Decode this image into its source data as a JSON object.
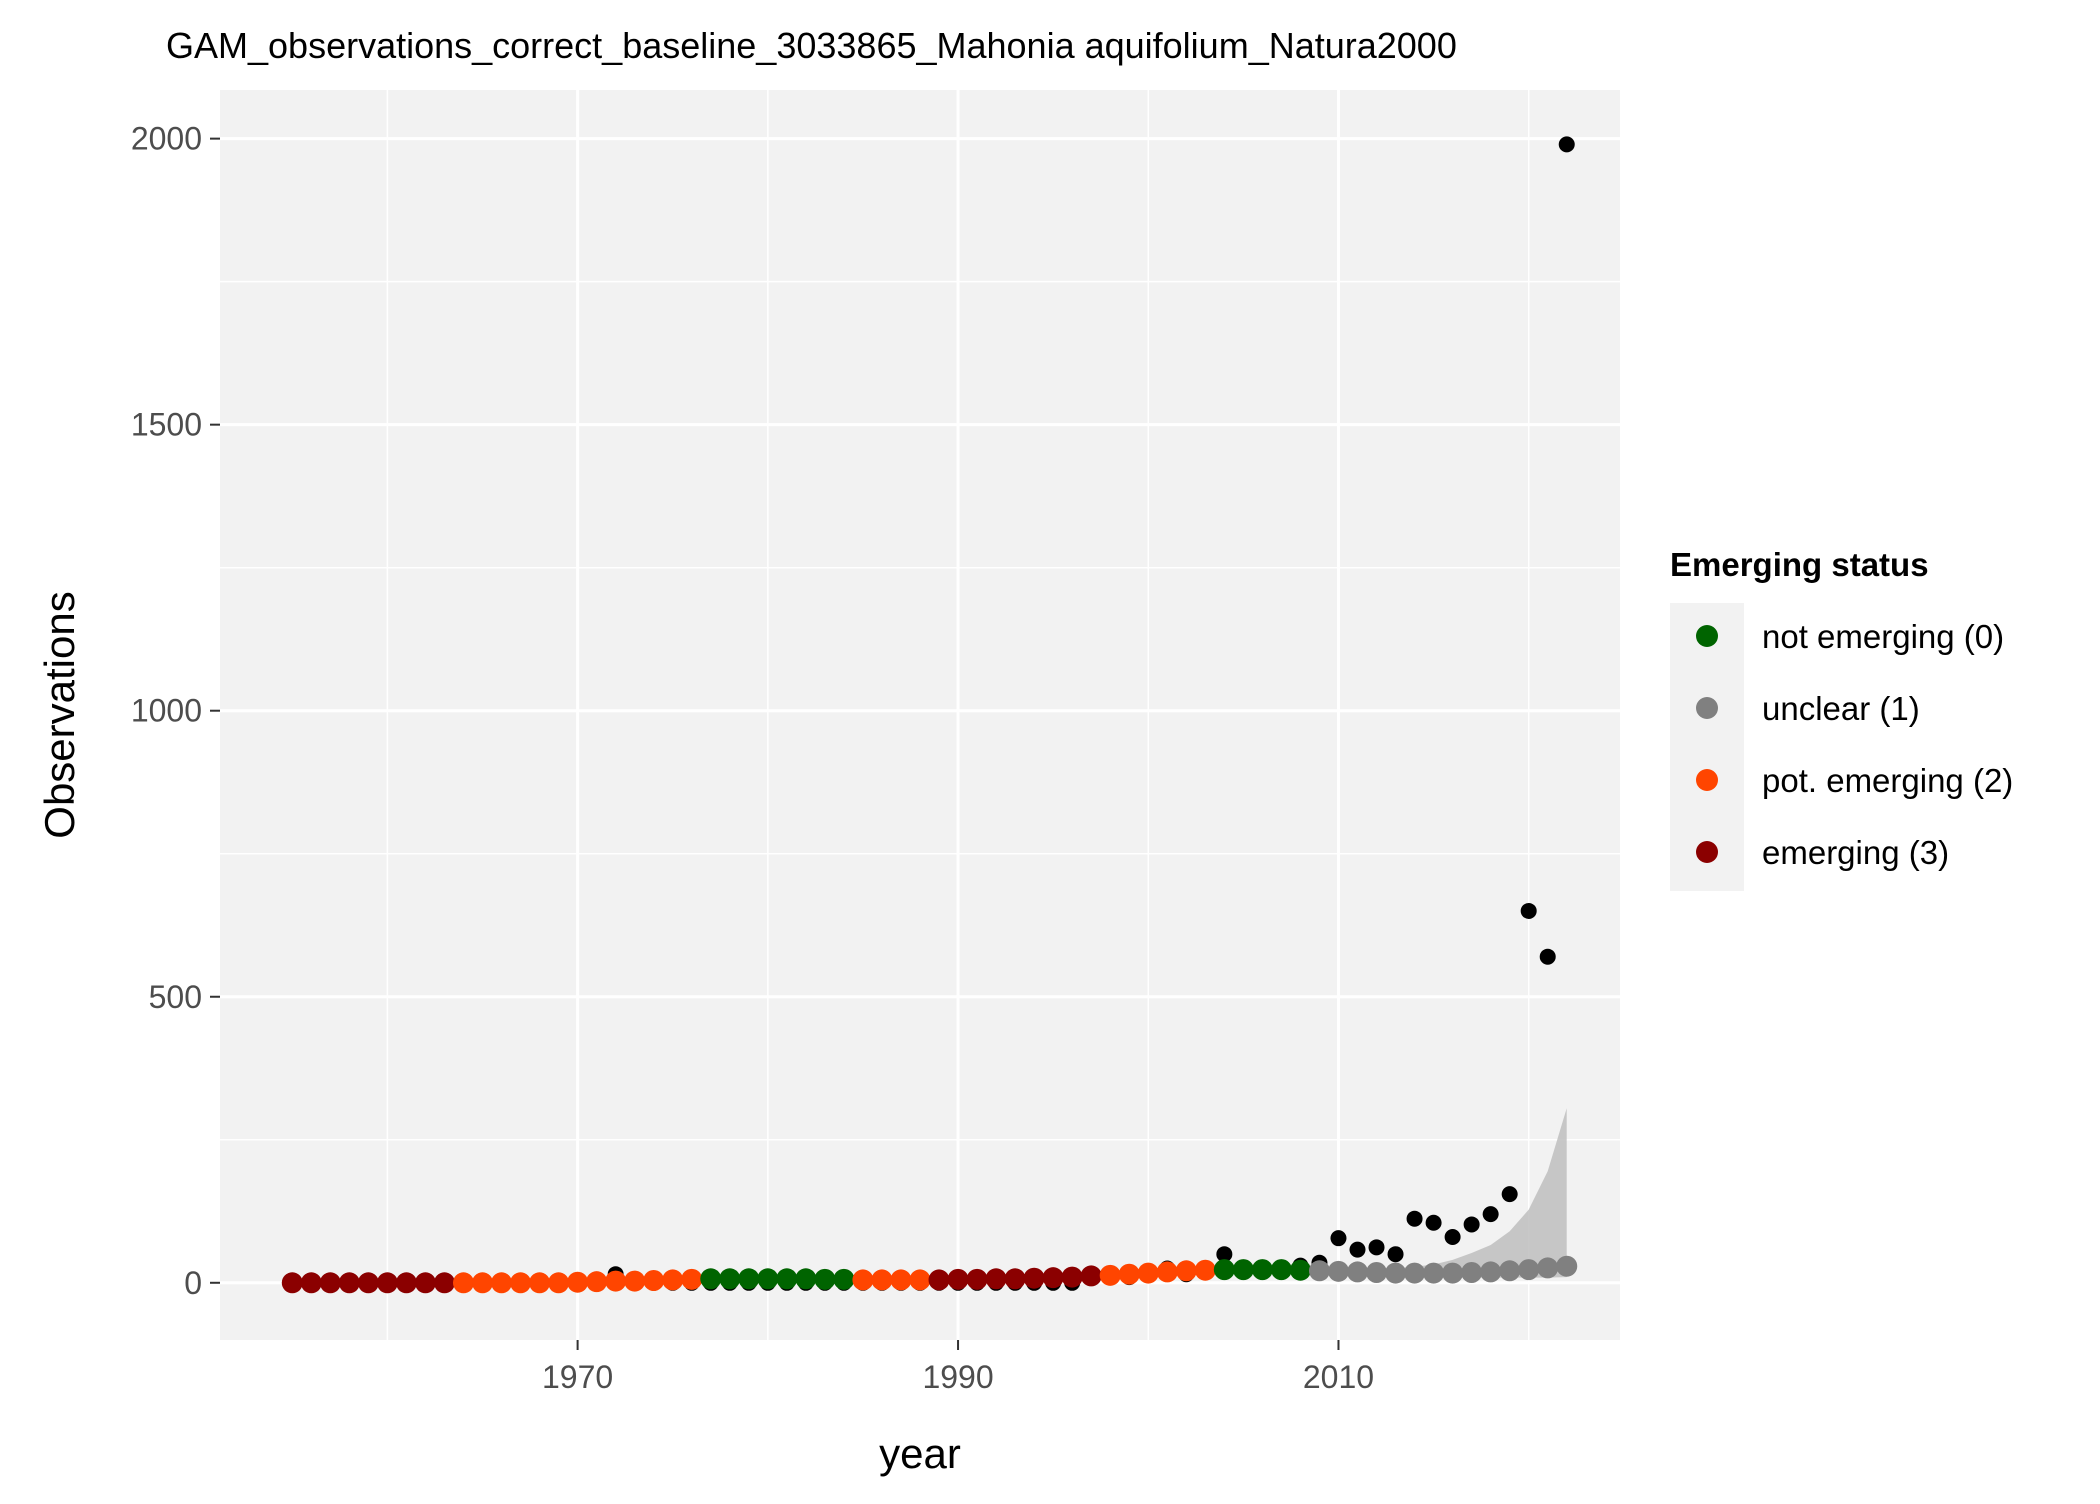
{
  "chart_data": {
    "type": "scatter",
    "title": "GAM_observations_correct_baseline_3033865_Mahonia aquifolium_Natura2000",
    "xlabel": "year",
    "ylabel": "Observations",
    "xlim": [
      1951.2,
      2024.8
    ],
    "ylim": [
      -100,
      2085
    ],
    "x_ticks": [
      1970,
      1990,
      2010
    ],
    "y_ticks": [
      0,
      500,
      1000,
      1500,
      2000
    ],
    "grid": true,
    "legend": {
      "title": "Emerging status",
      "position": "right",
      "entries": [
        {
          "label": "not emerging (0)",
          "color": "#006400"
        },
        {
          "label": "unclear (1)",
          "color": "#808080"
        },
        {
          "label": "pot. emerging (2)",
          "color": "#ff4500"
        },
        {
          "label": "emerging (3)",
          "color": "#8b0000"
        }
      ]
    },
    "observed": {
      "color": "#000000",
      "points": [
        [
          1955,
          0
        ],
        [
          1956,
          0
        ],
        [
          1957,
          0
        ],
        [
          1958,
          0
        ],
        [
          1959,
          0
        ],
        [
          1960,
          0
        ],
        [
          1961,
          0
        ],
        [
          1962,
          0
        ],
        [
          1963,
          0
        ],
        [
          1964,
          0
        ],
        [
          1965,
          0
        ],
        [
          1966,
          0
        ],
        [
          1967,
          0
        ],
        [
          1968,
          0
        ],
        [
          1969,
          0
        ],
        [
          1970,
          0
        ],
        [
          1971,
          0
        ],
        [
          1972,
          15
        ],
        [
          1973,
          0
        ],
        [
          1974,
          0
        ],
        [
          1975,
          0
        ],
        [
          1976,
          0
        ],
        [
          1977,
          0
        ],
        [
          1978,
          0
        ],
        [
          1979,
          0
        ],
        [
          1980,
          0
        ],
        [
          1981,
          0
        ],
        [
          1982,
          0
        ],
        [
          1983,
          0
        ],
        [
          1984,
          0
        ],
        [
          1985,
          0
        ],
        [
          1986,
          0
        ],
        [
          1987,
          0
        ],
        [
          1988,
          0
        ],
        [
          1989,
          0
        ],
        [
          1990,
          0
        ],
        [
          1991,
          0
        ],
        [
          1992,
          0
        ],
        [
          1993,
          0
        ],
        [
          1994,
          0
        ],
        [
          1995,
          0
        ],
        [
          1996,
          0
        ],
        [
          1997,
          10
        ],
        [
          1998,
          10
        ],
        [
          1999,
          10
        ],
        [
          2000,
          15
        ],
        [
          2001,
          25
        ],
        [
          2002,
          15
        ],
        [
          2003,
          20
        ],
        [
          2004,
          50
        ],
        [
          2005,
          20
        ],
        [
          2006,
          20
        ],
        [
          2007,
          25
        ],
        [
          2008,
          30
        ],
        [
          2009,
          35
        ],
        [
          2010,
          78
        ],
        [
          2011,
          58
        ],
        [
          2012,
          62
        ],
        [
          2013,
          50
        ],
        [
          2014,
          112
        ],
        [
          2015,
          105
        ],
        [
          2016,
          80
        ],
        [
          2017,
          102
        ],
        [
          2018,
          120
        ],
        [
          2019,
          155
        ],
        [
          2020,
          650
        ],
        [
          2021,
          570
        ],
        [
          2022,
          1990
        ]
      ]
    },
    "fitted": {
      "status_colors": [
        "#006400",
        "#808080",
        "#ff4500",
        "#8b0000"
      ],
      "points": [
        [
          1955,
          0,
          3
        ],
        [
          1956,
          0,
          3
        ],
        [
          1957,
          0,
          3
        ],
        [
          1958,
          0,
          3
        ],
        [
          1959,
          0,
          3
        ],
        [
          1960,
          0,
          3
        ],
        [
          1961,
          0,
          3
        ],
        [
          1962,
          0,
          3
        ],
        [
          1963,
          0,
          3
        ],
        [
          1964,
          0,
          2
        ],
        [
          1965,
          0,
          2
        ],
        [
          1966,
          0,
          2
        ],
        [
          1967,
          0,
          2
        ],
        [
          1968,
          0,
          2
        ],
        [
          1969,
          0,
          2
        ],
        [
          1970,
          1,
          2
        ],
        [
          1971,
          2,
          2
        ],
        [
          1972,
          3,
          2
        ],
        [
          1973,
          3,
          2
        ],
        [
          1974,
          4,
          2
        ],
        [
          1975,
          5,
          2
        ],
        [
          1976,
          6,
          2
        ],
        [
          1977,
          7,
          0
        ],
        [
          1978,
          7,
          0
        ],
        [
          1979,
          7,
          0
        ],
        [
          1980,
          7,
          0
        ],
        [
          1981,
          7,
          0
        ],
        [
          1982,
          7,
          0
        ],
        [
          1983,
          6,
          0
        ],
        [
          1984,
          6,
          0
        ],
        [
          1985,
          5,
          2
        ],
        [
          1986,
          5,
          2
        ],
        [
          1987,
          5,
          2
        ],
        [
          1988,
          5,
          2
        ],
        [
          1989,
          5,
          3
        ],
        [
          1990,
          6,
          3
        ],
        [
          1991,
          6,
          3
        ],
        [
          1992,
          7,
          3
        ],
        [
          1993,
          7,
          3
        ],
        [
          1994,
          8,
          3
        ],
        [
          1995,
          9,
          3
        ],
        [
          1996,
          10,
          3
        ],
        [
          1997,
          12,
          3
        ],
        [
          1998,
          13,
          2
        ],
        [
          1999,
          15,
          2
        ],
        [
          2000,
          17,
          2
        ],
        [
          2001,
          19,
          2
        ],
        [
          2002,
          21,
          2
        ],
        [
          2003,
          22,
          2
        ],
        [
          2004,
          23,
          0
        ],
        [
          2005,
          23,
          0
        ],
        [
          2006,
          23,
          0
        ],
        [
          2007,
          23,
          0
        ],
        [
          2008,
          22,
          0
        ],
        [
          2009,
          21,
          1
        ],
        [
          2010,
          20,
          1
        ],
        [
          2011,
          19,
          1
        ],
        [
          2012,
          18,
          1
        ],
        [
          2013,
          17,
          1
        ],
        [
          2014,
          17,
          1
        ],
        [
          2015,
          17,
          1
        ],
        [
          2016,
          17,
          1
        ],
        [
          2017,
          18,
          1
        ],
        [
          2018,
          19,
          1
        ],
        [
          2019,
          21,
          1
        ],
        [
          2020,
          23,
          1
        ],
        [
          2021,
          26,
          1
        ],
        [
          2022,
          29,
          1
        ]
      ]
    },
    "confidence_band": {
      "color": "#bebebe",
      "points": [
        [
          2009,
          18,
          24
        ],
        [
          2010,
          17,
          24
        ],
        [
          2011,
          15,
          24
        ],
        [
          2012,
          14,
          25
        ],
        [
          2013,
          12,
          26
        ],
        [
          2014,
          11,
          28
        ],
        [
          2015,
          10,
          32
        ],
        [
          2016,
          9,
          40
        ],
        [
          2017,
          9,
          52
        ],
        [
          2018,
          9,
          66
        ],
        [
          2019,
          9,
          90
        ],
        [
          2020,
          9,
          128
        ],
        [
          2021,
          9,
          195
        ],
        [
          2022,
          10,
          305
        ]
      ]
    }
  }
}
